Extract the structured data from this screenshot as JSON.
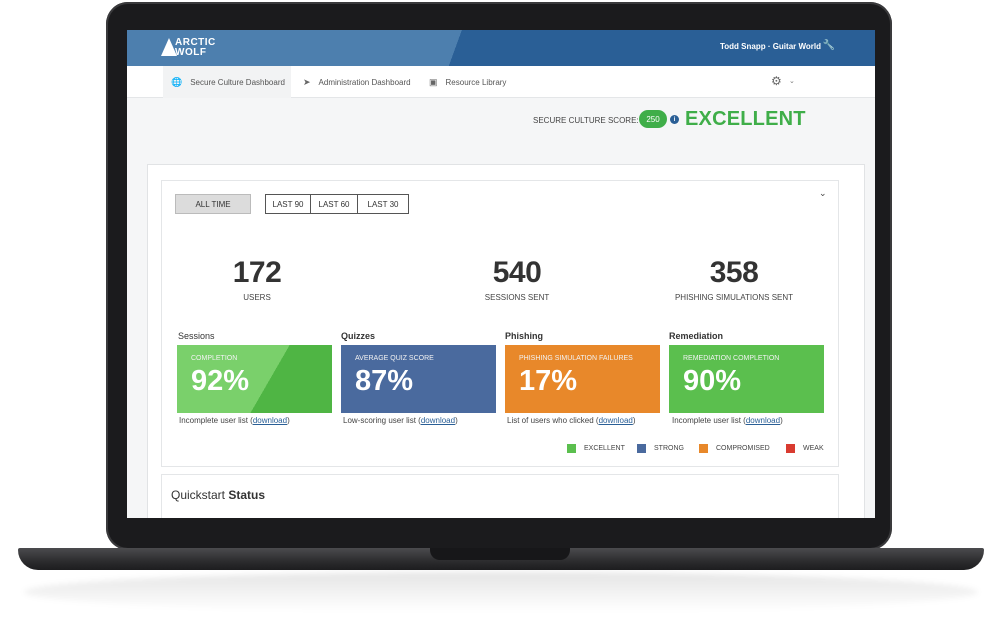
{
  "header": {
    "logo_line1": "ARCTIC",
    "logo_line2": "WOLF",
    "user": "Todd Snapp · Guitar World"
  },
  "nav": {
    "tabs": [
      {
        "label": "Secure Culture Dashboard",
        "icon": "globe-icon"
      },
      {
        "label": "Administration Dashboard",
        "icon": "rocket-icon"
      },
      {
        "label": "Resource Library",
        "icon": "basket-icon"
      }
    ]
  },
  "score": {
    "label": "SECURE CULTURE SCORE:",
    "value": "250",
    "rating": "EXCELLENT"
  },
  "ranges": [
    "ALL TIME",
    "LAST 90",
    "LAST 60",
    "LAST 30"
  ],
  "stats": [
    {
      "value": "172",
      "label": "USERS"
    },
    {
      "value": "540",
      "label": "SESSIONS SENT"
    },
    {
      "value": "358",
      "label": "PHISHING SIMULATIONS SENT"
    }
  ],
  "cards": [
    {
      "title": "Sessions",
      "sub": "COMPLETION",
      "pct": "92%",
      "foot_pre": "Incomplete user list (",
      "foot_link": "download",
      "foot_post": ")",
      "color": "#5bbf4e"
    },
    {
      "title": "Quizzes",
      "sub": "AVERAGE QUIZ SCORE",
      "pct": "87%",
      "foot_pre": "Low-scoring user list (",
      "foot_link": "download",
      "foot_post": ")",
      "color": "#4a6a9e"
    },
    {
      "title": "Phishing",
      "sub": "PHISHING SIMULATION  FAILURES",
      "pct": "17%",
      "foot_pre": "List of users who clicked (",
      "foot_link": "download",
      "foot_post": ")",
      "color": "#e8882a"
    },
    {
      "title": "Remediation",
      "sub": "REMEDIATION COMPLETION",
      "pct": "90%",
      "foot_pre": "Incomplete user list (",
      "foot_link": "download",
      "foot_post": ")",
      "color": "#5bbf4e"
    }
  ],
  "legend": [
    {
      "label": "EXCELLENT",
      "color": "#5bbf4e"
    },
    {
      "label": "STRONG",
      "color": "#4a6a9e"
    },
    {
      "label": "COMPROMISED",
      "color": "#e8882a"
    },
    {
      "label": "WEAK",
      "color": "#d93b30"
    }
  ],
  "quickstart": {
    "pre": "Quickstart",
    "bold": "Status"
  }
}
